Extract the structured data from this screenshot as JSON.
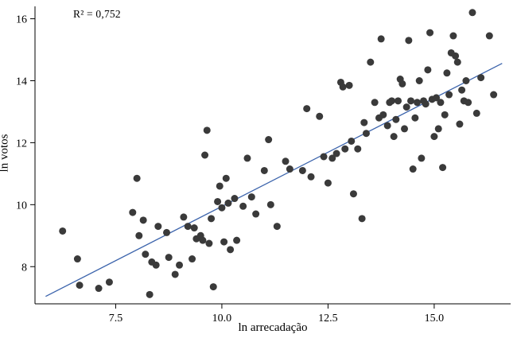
{
  "chart_data": {
    "type": "scatter",
    "title": "",
    "xlabel": "ln arrecadação",
    "ylabel": "ln votos",
    "annotation": "R² = 0,752",
    "r_squared": 0.752,
    "xlim": [
      5.6,
      16.8
    ],
    "ylim": [
      6.8,
      16.4
    ],
    "x_ticks": [
      7.5,
      10.0,
      12.5,
      15.0
    ],
    "x_tick_labels": [
      "7.5",
      "10.0",
      "12.5",
      "15.0"
    ],
    "y_ticks": [
      8,
      10,
      12,
      14,
      16
    ],
    "y_tick_labels": [
      "8",
      "10",
      "12",
      "14",
      "16"
    ],
    "grid": false,
    "legend": "none",
    "point_color": "#3a3a3a",
    "line_color": "#3c64ac",
    "axis_color": "#000000",
    "regression_line": {
      "x1": 5.85,
      "y1": 7.04,
      "x2": 16.6,
      "y2": 14.56,
      "slope": 0.7,
      "intercept": 2.94
    },
    "points": [
      [
        6.25,
        9.15
      ],
      [
        6.6,
        8.25
      ],
      [
        6.65,
        7.4
      ],
      [
        7.1,
        7.3
      ],
      [
        7.35,
        7.5
      ],
      [
        7.9,
        9.75
      ],
      [
        8.0,
        10.85
      ],
      [
        8.05,
        9.0
      ],
      [
        8.15,
        9.5
      ],
      [
        8.2,
        8.4
      ],
      [
        8.3,
        7.1
      ],
      [
        8.35,
        8.15
      ],
      [
        8.45,
        8.05
      ],
      [
        8.5,
        9.3
      ],
      [
        8.7,
        9.1
      ],
      [
        8.75,
        8.3
      ],
      [
        8.9,
        7.75
      ],
      [
        9.0,
        8.05
      ],
      [
        9.1,
        9.6
      ],
      [
        9.2,
        9.3
      ],
      [
        9.3,
        8.25
      ],
      [
        9.35,
        9.25
      ],
      [
        9.4,
        8.9
      ],
      [
        9.5,
        9.0
      ],
      [
        9.55,
        8.85
      ],
      [
        9.6,
        11.6
      ],
      [
        9.65,
        12.4
      ],
      [
        9.7,
        8.75
      ],
      [
        9.75,
        9.55
      ],
      [
        9.8,
        7.35
      ],
      [
        9.9,
        10.1
      ],
      [
        9.95,
        10.6
      ],
      [
        10.0,
        9.9
      ],
      [
        10.05,
        8.8
      ],
      [
        10.1,
        10.85
      ],
      [
        10.15,
        10.05
      ],
      [
        10.2,
        8.55
      ],
      [
        10.3,
        10.2
      ],
      [
        10.35,
        8.85
      ],
      [
        10.5,
        9.95
      ],
      [
        10.6,
        11.5
      ],
      [
        10.7,
        10.25
      ],
      [
        10.8,
        9.7
      ],
      [
        11.0,
        11.1
      ],
      [
        11.1,
        12.1
      ],
      [
        11.15,
        10.0
      ],
      [
        11.3,
        9.3
      ],
      [
        11.5,
        11.4
      ],
      [
        11.6,
        11.15
      ],
      [
        11.9,
        11.1
      ],
      [
        12.0,
        13.1
      ],
      [
        12.1,
        10.9
      ],
      [
        12.3,
        12.85
      ],
      [
        12.4,
        11.55
      ],
      [
        12.5,
        10.7
      ],
      [
        12.6,
        11.5
      ],
      [
        12.7,
        11.65
      ],
      [
        12.8,
        13.95
      ],
      [
        12.85,
        13.8
      ],
      [
        12.9,
        11.8
      ],
      [
        13.0,
        13.85
      ],
      [
        13.05,
        12.05
      ],
      [
        13.1,
        10.35
      ],
      [
        13.2,
        11.8
      ],
      [
        13.3,
        9.55
      ],
      [
        13.35,
        12.65
      ],
      [
        13.4,
        12.3
      ],
      [
        13.5,
        14.6
      ],
      [
        13.6,
        13.3
      ],
      [
        13.7,
        12.8
      ],
      [
        13.75,
        15.35
      ],
      [
        13.8,
        12.9
      ],
      [
        13.9,
        12.55
      ],
      [
        13.95,
        13.3
      ],
      [
        14.0,
        13.35
      ],
      [
        14.05,
        12.2
      ],
      [
        14.1,
        12.75
      ],
      [
        14.15,
        13.35
      ],
      [
        14.2,
        14.05
      ],
      [
        14.25,
        13.9
      ],
      [
        14.3,
        12.45
      ],
      [
        14.35,
        13.15
      ],
      [
        14.4,
        15.3
      ],
      [
        14.45,
        13.35
      ],
      [
        14.5,
        11.15
      ],
      [
        14.55,
        12.8
      ],
      [
        14.6,
        13.3
      ],
      [
        14.65,
        14.0
      ],
      [
        14.7,
        11.5
      ],
      [
        14.75,
        13.35
      ],
      [
        14.8,
        13.25
      ],
      [
        14.85,
        14.35
      ],
      [
        14.9,
        15.55
      ],
      [
        14.95,
        13.4
      ],
      [
        15.0,
        12.2
      ],
      [
        15.05,
        13.45
      ],
      [
        15.1,
        12.45
      ],
      [
        15.15,
        13.3
      ],
      [
        15.2,
        11.2
      ],
      [
        15.25,
        12.9
      ],
      [
        15.3,
        14.25
      ],
      [
        15.35,
        13.55
      ],
      [
        15.4,
        14.9
      ],
      [
        15.45,
        15.45
      ],
      [
        15.5,
        14.8
      ],
      [
        15.55,
        14.6
      ],
      [
        15.6,
        12.6
      ],
      [
        15.65,
        13.7
      ],
      [
        15.7,
        13.35
      ],
      [
        15.75,
        14.0
      ],
      [
        15.8,
        13.3
      ],
      [
        15.9,
        16.2
      ],
      [
        16.0,
        12.95
      ],
      [
        16.1,
        14.1
      ],
      [
        16.3,
        15.45
      ],
      [
        16.4,
        13.55
      ]
    ]
  }
}
